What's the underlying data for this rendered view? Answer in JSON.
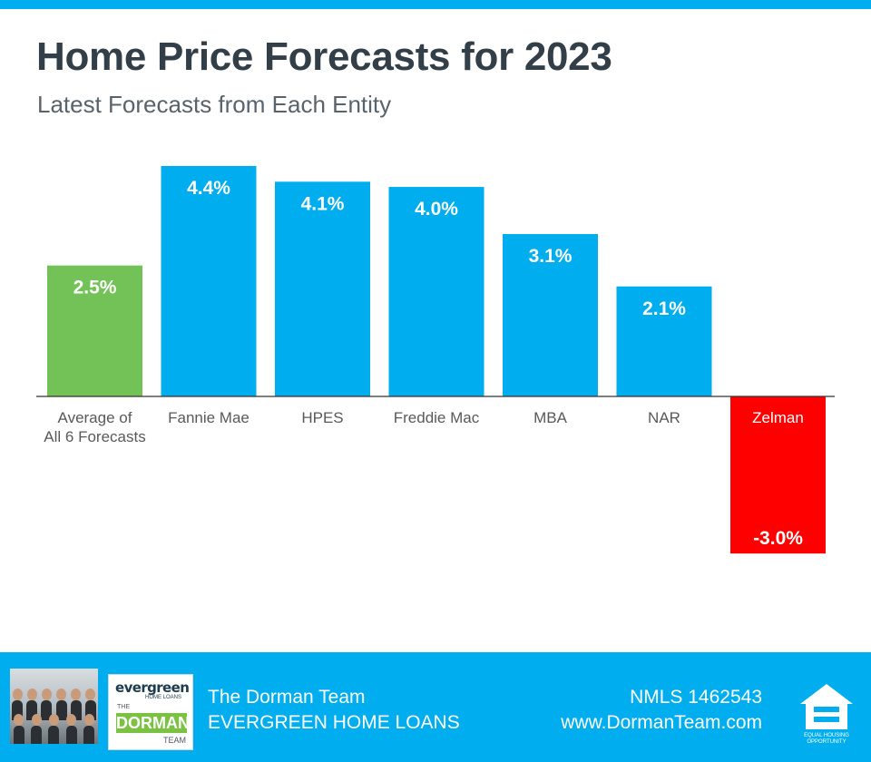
{
  "header": {
    "title": "Home Price Forecasts for 2023",
    "subtitle": "Latest Forecasts from Each Entity"
  },
  "chart_data": {
    "type": "bar",
    "title": "Home Price Forecasts for 2023",
    "subtitle": "Latest Forecasts from Each Entity",
    "xlabel": "",
    "ylabel": "",
    "categories": [
      "Average of\nAll 6 Forecasts",
      "Fannie Mae",
      "HPES",
      "Freddie Mac",
      "MBA",
      "NAR",
      "Zelman"
    ],
    "values": [
      2.5,
      4.4,
      4.1,
      4.0,
      3.1,
      2.1,
      -3.0
    ],
    "value_labels": [
      "2.5%",
      "4.4%",
      "4.1%",
      "4.0%",
      "3.1%",
      "2.1%",
      "-3.0%"
    ],
    "bar_colors": [
      "#72c257",
      "#00aeef",
      "#00aeef",
      "#00aeef",
      "#00aeef",
      "#00aeef",
      "#ff0000"
    ],
    "category_label_colors": [
      "#595959",
      "#595959",
      "#595959",
      "#595959",
      "#595959",
      "#595959",
      "#ffffff"
    ],
    "ylim": [
      -3.0,
      4.4
    ],
    "grid": false,
    "legend": "none"
  },
  "footer": {
    "team_name": "The Dorman Team",
    "company": "EVERGREEN HOME LOANS",
    "nmls": "NMLS 1462543",
    "website": "www.DormanTeam.com",
    "logo_text": {
      "brand": "evergreen",
      "brand_sub": "HOME LOANS",
      "the": "THE",
      "dorman": "DORMAN",
      "team": "TEAM"
    },
    "equal_housing": "EQUAL HOUSING OPPORTUNITY",
    "background_color": "#00aeef"
  }
}
